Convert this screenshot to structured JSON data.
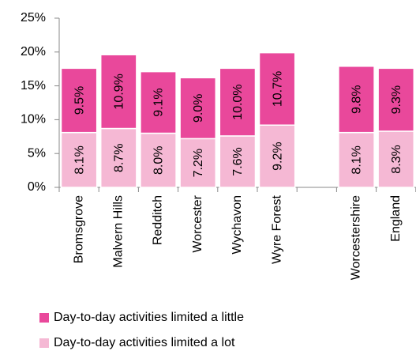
{
  "chart_data": {
    "type": "stacked_bar",
    "categories": [
      "Bromsgrove",
      "Malvern Hills",
      "Redditch",
      "Worcester",
      "Wychavon",
      "Wyre Forest",
      null,
      "Worcestershire",
      "England"
    ],
    "series": [
      {
        "name": "Day-to-day activities limited a lot",
        "color": "#f5b8d4",
        "values": [
          8.1,
          8.7,
          8.0,
          7.2,
          7.6,
          9.2,
          null,
          8.1,
          8.3
        ],
        "value_labels": [
          "8.1%",
          "8.7%",
          "8.0%",
          "7.2%",
          "7.6%",
          "9.2%",
          null,
          "8.1%",
          "8.3%"
        ]
      },
      {
        "name": "Day-to-day activities limited a little",
        "color": "#e9489b",
        "values": [
          9.5,
          10.9,
          9.1,
          9.0,
          10.0,
          10.7,
          null,
          9.8,
          9.3
        ],
        "value_labels": [
          "9.5%",
          "10.9%",
          "9.1%",
          "9.0%",
          "10.0%",
          "10.7%",
          null,
          "9.8%",
          "9.3%"
        ]
      }
    ],
    "ylim": [
      0,
      25
    ],
    "yticks": [
      {
        "value": 0,
        "label": "0%"
      },
      {
        "value": 5,
        "label": "5%"
      },
      {
        "value": 10,
        "label": "10%"
      },
      {
        "value": 15,
        "label": "15%"
      },
      {
        "value": 20,
        "label": "20%"
      },
      {
        "value": 25,
        "label": "25%"
      }
    ],
    "grid": false
  }
}
